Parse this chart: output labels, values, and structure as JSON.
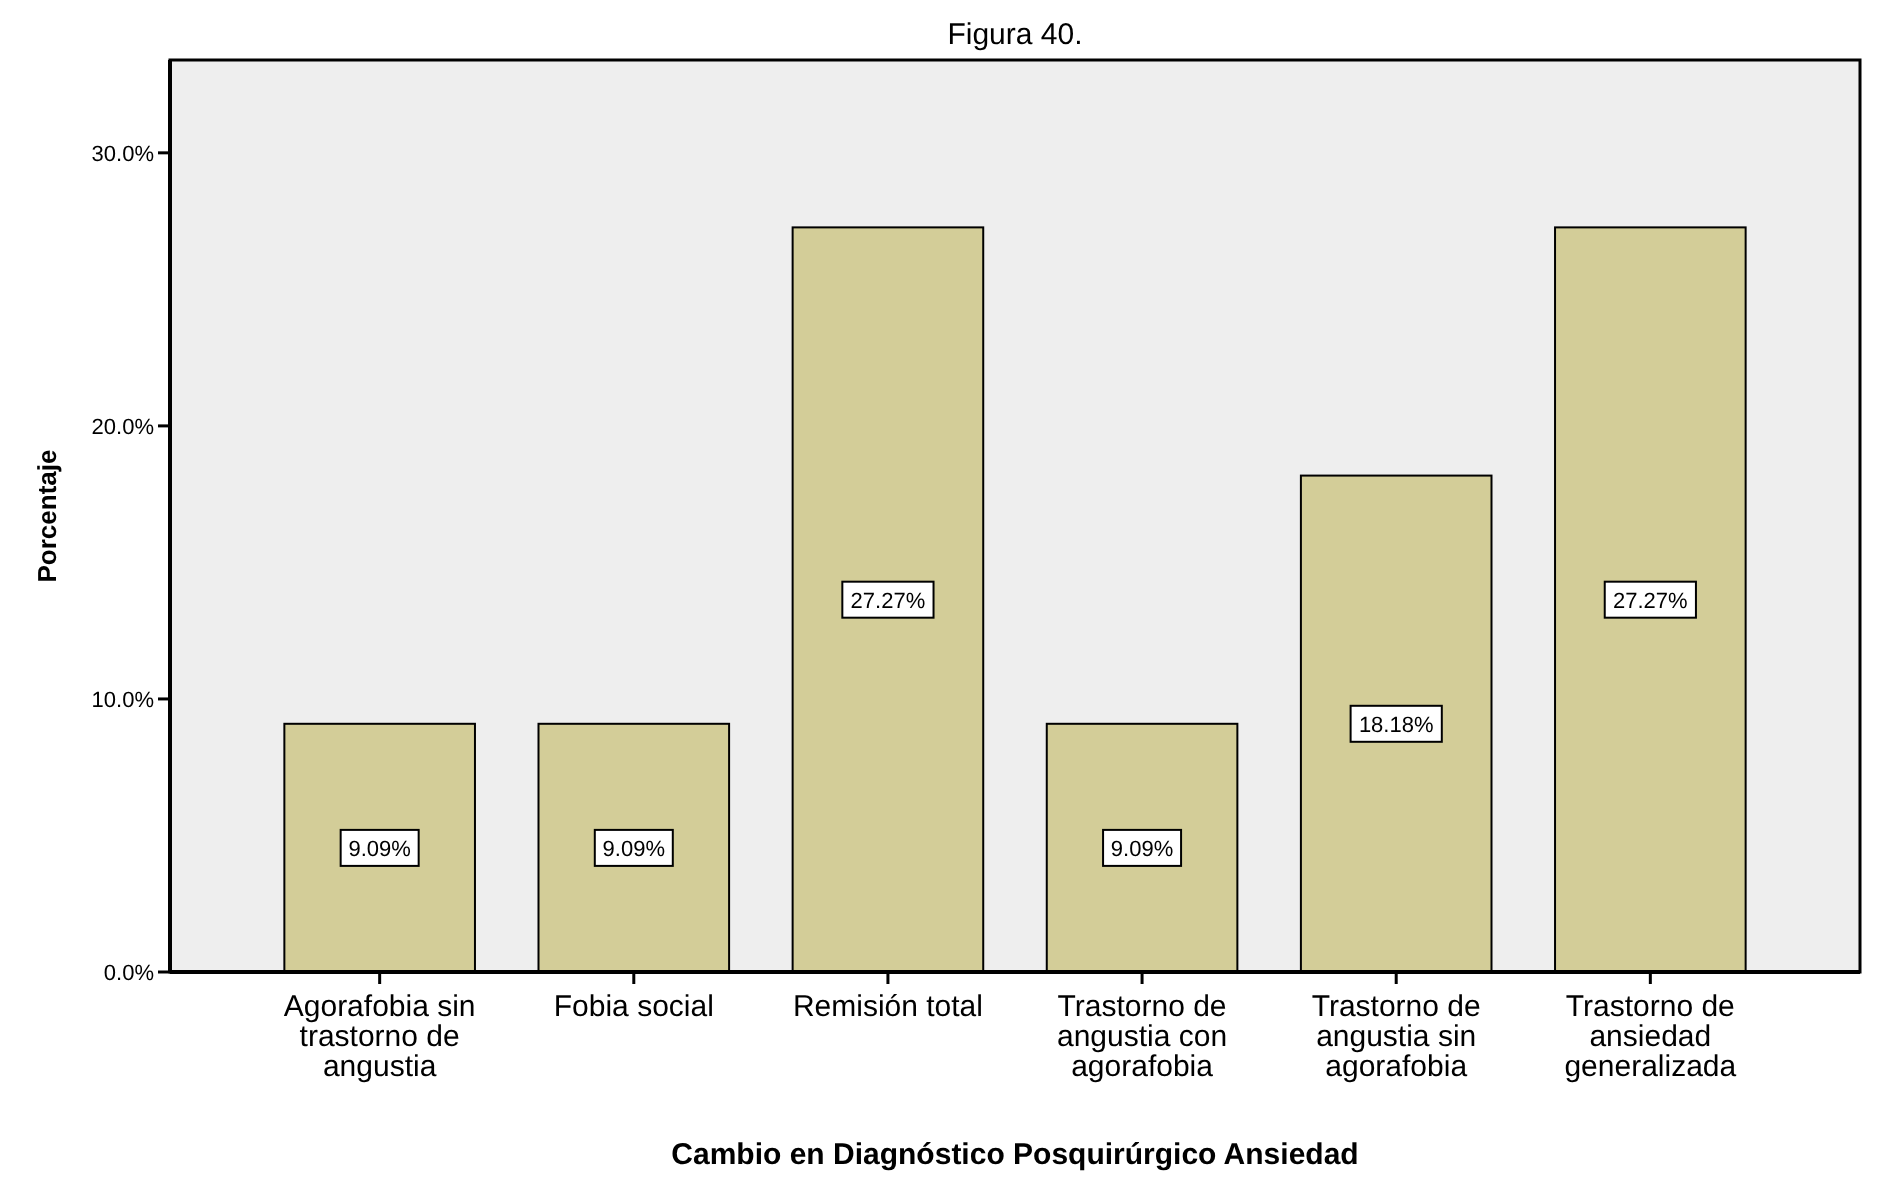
{
  "chart_data": {
    "type": "bar",
    "title": "Figura 40.",
    "xlabel": "Cambio en Diagnóstico Posquirúrgico Ansiedad",
    "ylabel": "Porcentaje",
    "categories": [
      "Agorafobia sin trastorno de angustia",
      "Fobia social",
      "Remisión total",
      "Trastorno de angustia con agorafobia",
      "Trastorno de angustia sin agorafobia",
      "Trastorno de ansiedad generalizada"
    ],
    "values": [
      9.09,
      9.09,
      27.27,
      9.09,
      18.18,
      27.27
    ],
    "value_labels": [
      "9.09%",
      "9.09%",
      "27.27%",
      "9.09%",
      "18.18%",
      "27.27%"
    ],
    "color": "#d3cd98",
    "ylim": [
      0,
      33.4
    ],
    "yticks": [
      {
        "value": 0,
        "label": "0.0%"
      },
      {
        "value": 10,
        "label": "10.0%"
      },
      {
        "value": 20,
        "label": "20.0%"
      },
      {
        "value": 30,
        "label": "30.0%"
      }
    ],
    "grid": false
  }
}
